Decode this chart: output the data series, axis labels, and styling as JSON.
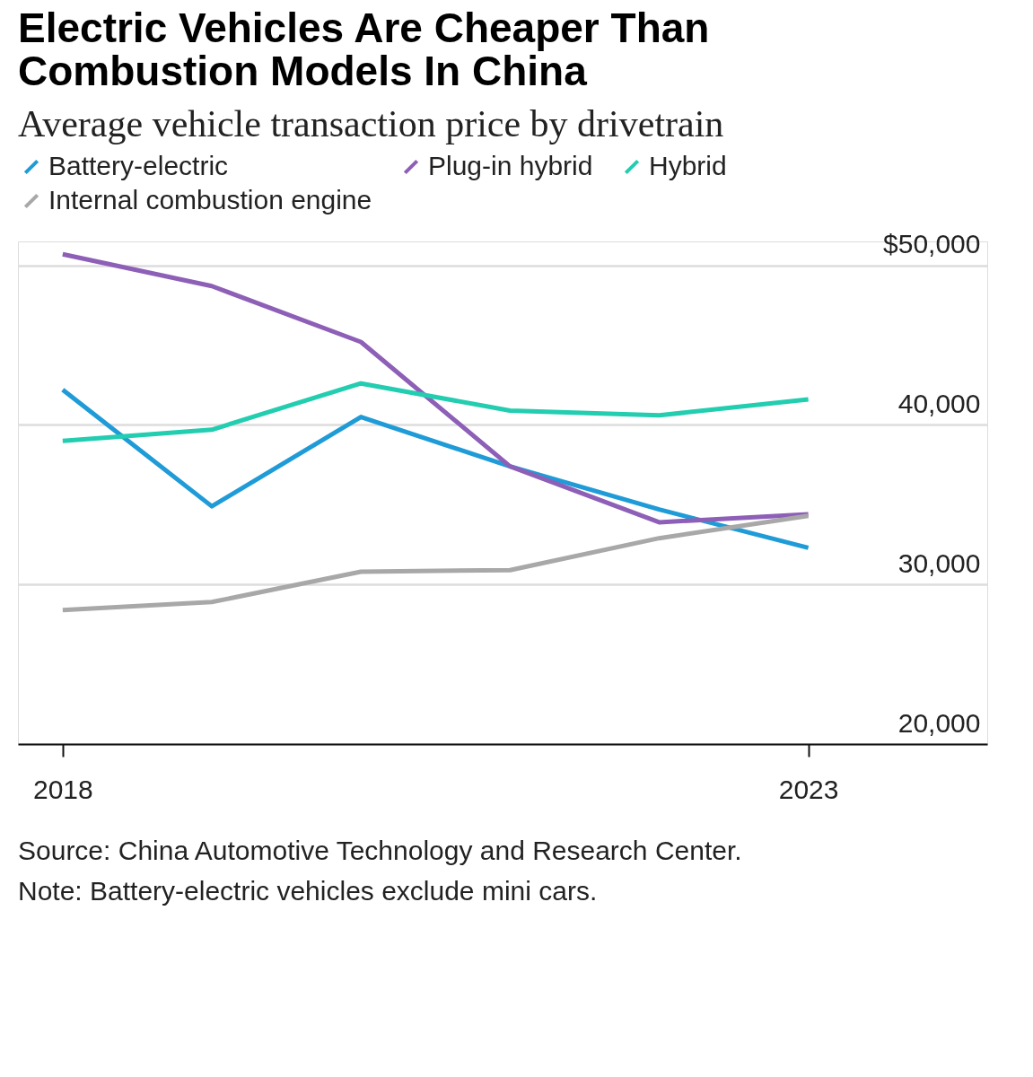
{
  "chart_data": {
    "type": "line",
    "title": "Electric Vehicles Are Cheaper Than Combustion Models In China",
    "subtitle": "Average vehicle transaction price by drivetrain",
    "x": [
      2018,
      2019,
      2020,
      2021,
      2022,
      2023
    ],
    "series": [
      {
        "name": "Battery-electric",
        "color": "#1f9bd7",
        "values": [
          42200,
          34900,
          40500,
          37400,
          34700,
          32300
        ]
      },
      {
        "name": "Plug-in hybrid",
        "color": "#8e5fb7",
        "values": [
          50700,
          48700,
          45200,
          37400,
          33900,
          34400
        ]
      },
      {
        "name": "Hybrid",
        "color": "#22cdb0",
        "values": [
          39000,
          39700,
          42600,
          40900,
          40600,
          41600
        ]
      },
      {
        "name": "Internal combustion engine",
        "color": "#a8a8a8",
        "values": [
          28400,
          28900,
          30800,
          30900,
          32900,
          34300
        ]
      }
    ],
    "xlim": [
      2017.7,
      2024.2
    ],
    "xticks": [
      2018,
      2023
    ],
    "ylim": [
      20000,
      51500
    ],
    "yticks": [
      {
        "value": 20000,
        "label": "20,000"
      },
      {
        "value": 30000,
        "label": "30,000"
      },
      {
        "value": 40000,
        "label": "40,000"
      },
      {
        "value": 50000,
        "label": "$50,000"
      }
    ],
    "grid": "y",
    "legend": "top left",
    "marker": "none",
    "line_style": "solid",
    "annotations": [
      "Source: China Automotive Technology and Research Center.",
      "Note: Battery-electric vehicles exclude mini cars."
    ]
  }
}
